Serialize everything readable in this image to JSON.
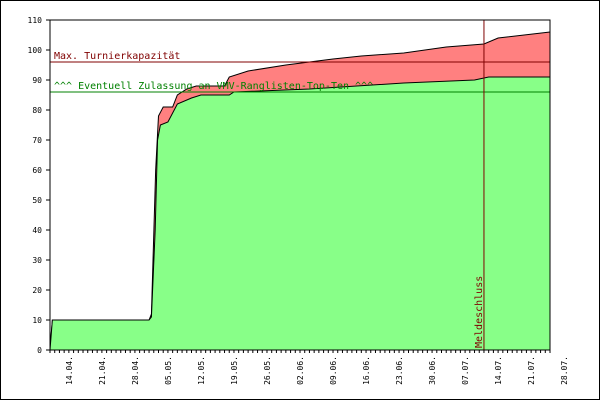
{
  "chart_data": {
    "type": "area",
    "title": "",
    "xlabel": "",
    "ylabel": "",
    "ylim": [
      0,
      110
    ],
    "yticks": [
      0,
      10,
      20,
      30,
      40,
      50,
      60,
      70,
      80,
      90,
      100,
      110
    ],
    "x_range_days": [
      0,
      106
    ],
    "x_tick_labels": [
      "14.04.",
      "21.04.",
      "28.04.",
      "05.05.",
      "12.05.",
      "19.05.",
      "26.05.",
      "02.06.",
      "09.06.",
      "16.06.",
      "23.06.",
      "30.06.",
      "07.07.",
      "14.07.",
      "21.07.",
      "28.07."
    ],
    "grid": false,
    "series": [
      {
        "name": "",
        "color": "#ff8080",
        "stroke": "#000000",
        "points": [
          [
            0,
            0
          ],
          [
            0.5,
            10
          ],
          [
            21,
            10
          ],
          [
            21.5,
            12
          ],
          [
            22.4,
            60
          ],
          [
            23,
            78
          ],
          [
            24,
            81
          ],
          [
            26,
            81
          ],
          [
            27,
            85
          ],
          [
            29,
            87
          ],
          [
            31,
            88
          ],
          [
            37,
            88
          ],
          [
            38,
            91
          ],
          [
            42,
            93
          ],
          [
            50,
            95
          ],
          [
            55,
            96
          ],
          [
            60,
            97
          ],
          [
            66,
            98
          ],
          [
            75,
            99
          ],
          [
            84,
            101
          ],
          [
            92,
            102
          ],
          [
            95,
            104
          ],
          [
            106,
            106
          ]
        ]
      },
      {
        "name": "",
        "color": "#88ff88",
        "stroke": "#000000",
        "points": [
          [
            0,
            0
          ],
          [
            0.5,
            10
          ],
          [
            21,
            10
          ],
          [
            21.5,
            11
          ],
          [
            22.3,
            40
          ],
          [
            22.8,
            70
          ],
          [
            23.4,
            75
          ],
          [
            25,
            76
          ],
          [
            27,
            82
          ],
          [
            30,
            84
          ],
          [
            32,
            85
          ],
          [
            38,
            85
          ],
          [
            39,
            86
          ],
          [
            55,
            87
          ],
          [
            65,
            88
          ],
          [
            75,
            89
          ],
          [
            90,
            90
          ],
          [
            93,
            91
          ],
          [
            106,
            91
          ]
        ]
      }
    ],
    "reference_lines": [
      {
        "value": 96,
        "label": "Max. Turnierkapazität",
        "color": "#800000"
      },
      {
        "value": 86,
        "label": "^^^ Eventuell Zulassung an VMV-Ranglisten-Top-Ten ^^^",
        "color": "#008000"
      }
    ],
    "vertical_marker": {
      "x_day": 92,
      "label": "Meldeschluss",
      "color": "#800000"
    }
  }
}
